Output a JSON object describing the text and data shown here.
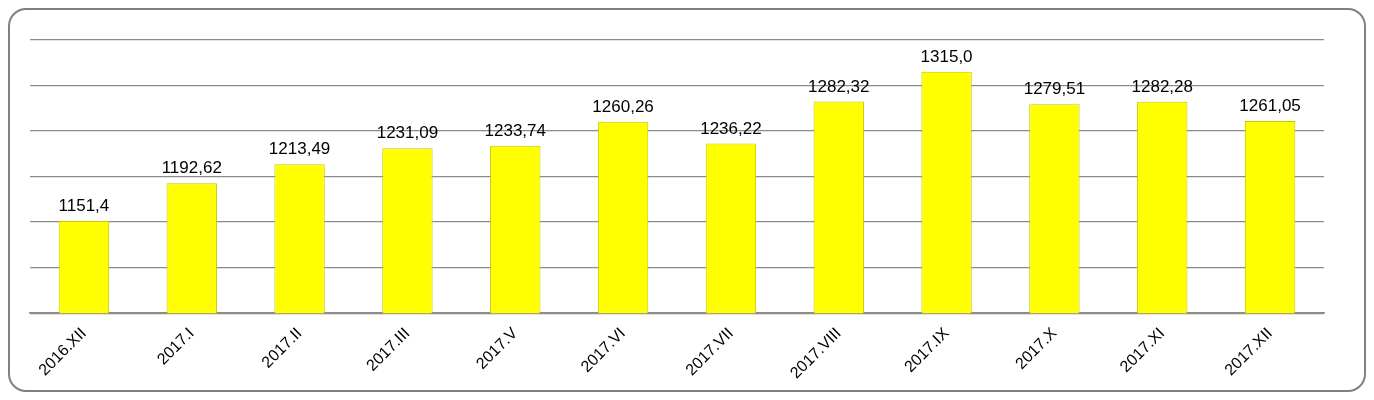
{
  "chart_data": {
    "type": "bar",
    "categories": [
      "2016.XII",
      "2017.I",
      "2017.II",
      "2017.III",
      "2017.V",
      "2017.VI",
      "2017.VII",
      "2017.VIII",
      "2017.IX",
      "2017.X",
      "2017.XI",
      "2017.XII"
    ],
    "values": [
      1151.4,
      1192.62,
      1213.49,
      1231.09,
      1233.74,
      1260.26,
      1236.22,
      1282.32,
      1315.0,
      1279.51,
      1282.28,
      1261.05
    ],
    "value_labels": [
      "1151,4",
      "1192,62",
      "1213,49",
      "1231,09",
      "1233,74",
      "1260,26",
      "1236,22",
      "1282,32",
      "1315,0",
      "1279,51",
      "1282,28",
      "1261,05"
    ],
    "color": "#ffff00",
    "ylim": [
      1050,
      1350
    ],
    "yticks": [
      {
        "value": 1050,
        "label": null
      },
      {
        "value": 1100,
        "label": null
      },
      {
        "value": 1150,
        "label": null
      },
      {
        "value": 1200,
        "label": null
      },
      {
        "value": 1250,
        "label": null
      },
      {
        "value": 1300,
        "label": null
      },
      {
        "value": 1350,
        "label": null
      }
    ],
    "grid": "y",
    "tick_labels": "x",
    "legend": false
  }
}
